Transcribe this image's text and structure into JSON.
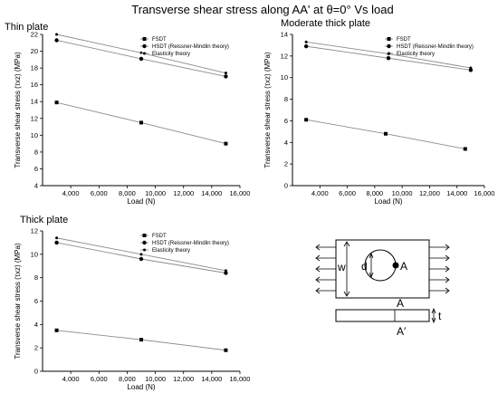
{
  "figure": {
    "title": "Transverse shear stress along AA' at θ=0° Vs load"
  },
  "chart_data": [
    {
      "type": "line",
      "title": "Thin plate",
      "xlabel": "Load (N)",
      "ylabel": "Transverse shear stress (τxz) (MPa)",
      "xlim": [
        2000,
        16000
      ],
      "xticks": [
        4000,
        6000,
        8000,
        10000,
        12000,
        14000,
        16000
      ],
      "xtick_labels": [
        "4,000",
        "6,000",
        "8,000",
        "10,000",
        "12,000",
        "14,000",
        "16,000"
      ],
      "ylim": [
        4,
        22
      ],
      "yticks": [
        4,
        6,
        8,
        10,
        12,
        14,
        16,
        18,
        20,
        22
      ],
      "legend_position": "top-right",
      "series": [
        {
          "name": "FSDT",
          "marker": "square",
          "x": [
            3000,
            9000,
            15000
          ],
          "y": [
            13.9,
            11.5,
            9.0
          ]
        },
        {
          "name": "HSDT (Reissner-Mindlin theory)",
          "marker": "circle",
          "x": [
            3000,
            9000,
            15000
          ],
          "y": [
            21.3,
            19.1,
            17.0
          ]
        },
        {
          "name": "Elasticity theory",
          "marker": "dot",
          "x": [
            3000,
            9000,
            15000
          ],
          "y": [
            22.0,
            19.8,
            17.4
          ]
        }
      ]
    },
    {
      "type": "line",
      "title": "Moderate thick plate",
      "xlabel": "Load (N)",
      "ylabel": "Transverse shear stress (τxz) (MPa)",
      "xlim": [
        2000,
        16000
      ],
      "xticks": [
        4000,
        6000,
        8000,
        10000,
        12000,
        14000,
        16000
      ],
      "xtick_labels": [
        "4,000",
        "6,000",
        "8,000",
        "10,000",
        "12,000",
        "14,000",
        "16,000"
      ],
      "ylim": [
        0,
        14
      ],
      "yticks": [
        0,
        2,
        4,
        6,
        8,
        10,
        12,
        14
      ],
      "legend_position": "top-right",
      "series": [
        {
          "name": "FSDT",
          "marker": "square",
          "x": [
            3000,
            8800,
            14600
          ],
          "y": [
            6.1,
            4.8,
            3.4
          ]
        },
        {
          "name": "HSDT (Reissner-Mindlin theory)",
          "marker": "circle",
          "x": [
            3000,
            9000,
            15000
          ],
          "y": [
            12.9,
            11.8,
            10.7
          ]
        },
        {
          "name": "Elasticity theory",
          "marker": "dot",
          "x": [
            3000,
            9000,
            15000
          ],
          "y": [
            13.3,
            12.2,
            10.9
          ]
        }
      ]
    },
    {
      "type": "line",
      "title": "Thick plate",
      "xlabel": "Load (N)",
      "ylabel": "Transverse shear stress (τxz) (MPa)",
      "xlim": [
        2000,
        16000
      ],
      "xticks": [
        4000,
        6000,
        8000,
        10000,
        12000,
        14000,
        16000
      ],
      "xtick_labels": [
        "4,000",
        "6,000",
        "8,000",
        "10,000",
        "12,000",
        "14,000",
        "16,000"
      ],
      "ylim": [
        0,
        12
      ],
      "yticks": [
        0,
        2,
        4,
        6,
        8,
        10,
        12
      ],
      "legend_position": "top-right",
      "series": [
        {
          "name": "FSDT",
          "marker": "square",
          "x": [
            3000,
            9000,
            15000
          ],
          "y": [
            3.5,
            2.7,
            1.8
          ]
        },
        {
          "name": "HSDT (Reissner-Mindlin theory)",
          "marker": "circle",
          "x": [
            3000,
            9000,
            15000
          ],
          "y": [
            11.0,
            9.6,
            8.4
          ]
        },
        {
          "name": "Elasticity theory",
          "marker": "dot",
          "x": [
            3000,
            9000,
            15000
          ],
          "y": [
            11.4,
            10.0,
            8.6
          ]
        }
      ]
    }
  ],
  "diagram": {
    "labels": {
      "width": "w",
      "diameter": "d",
      "point": "A",
      "section_top": "A",
      "section_bottom": "A′",
      "thickness": "t"
    }
  },
  "colors": {
    "axis": "#000000",
    "line": "#8c8c8c",
    "marker": "#000000"
  }
}
